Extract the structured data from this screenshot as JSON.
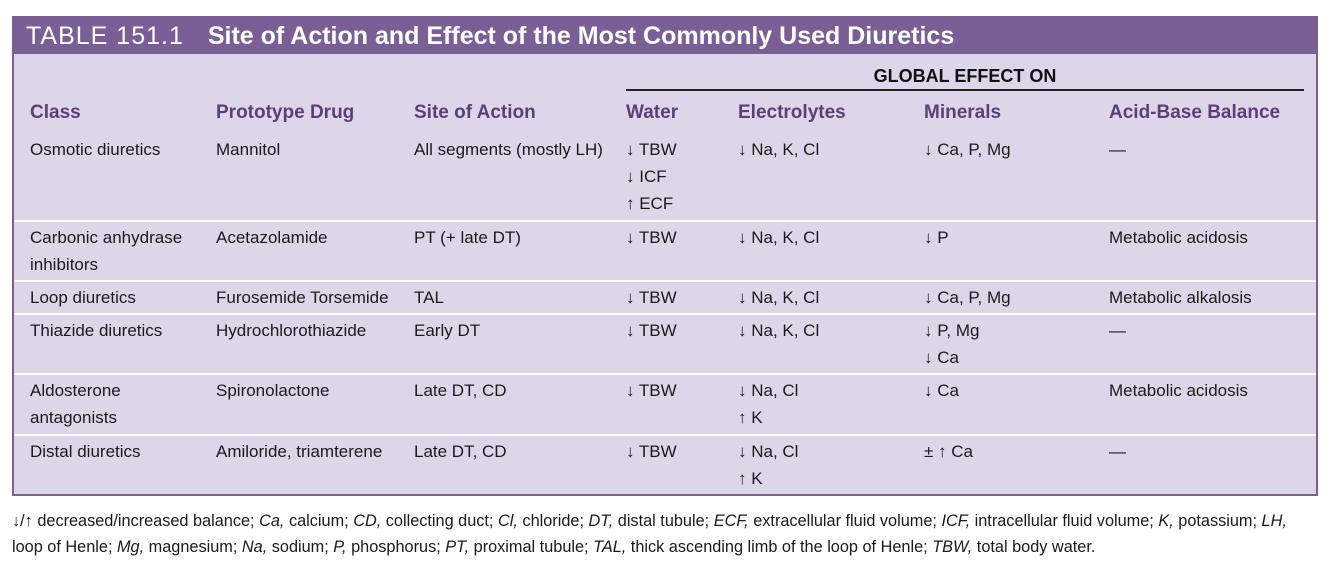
{
  "title": {
    "label": "TABLE 151.1",
    "caption": "Site of Action and Effect of the Most Commonly Used Diuretics"
  },
  "global_header": "GLOBAL EFFECT ON",
  "columns": [
    "Class",
    "Prototype Drug",
    "Site of Action",
    "Water",
    "Electrolytes",
    "Minerals",
    "Acid-Base Balance"
  ],
  "rows": [
    {
      "class": [
        "Osmotic diuretics"
      ],
      "drug": [
        "Mannitol"
      ],
      "site": [
        "All segments (mostly LH)"
      ],
      "water": [
        "↓ TBW",
        "↓ ICF",
        "↑ ECF"
      ],
      "electrolytes": [
        "↓ Na, K, Cl"
      ],
      "minerals": [
        "↓ Ca, P, Mg"
      ],
      "acid_base": [
        "—"
      ]
    },
    {
      "class": [
        "Carbonic anhydrase",
        "  inhibitors"
      ],
      "drug": [
        "Acetazolamide"
      ],
      "site": [
        "PT (+ late DT)"
      ],
      "water": [
        "↓ TBW"
      ],
      "electrolytes": [
        "↓ Na, K, Cl"
      ],
      "minerals": [
        "↓ P"
      ],
      "acid_base": [
        "Metabolic acidosis"
      ]
    },
    {
      "class": [
        "Loop diuretics"
      ],
      "drug": [
        "Furosemide Torsemide"
      ],
      "site": [
        "TAL"
      ],
      "water": [
        "↓ TBW"
      ],
      "electrolytes": [
        "↓ Na, K, Cl"
      ],
      "minerals": [
        "↓ Ca, P, Mg"
      ],
      "acid_base": [
        "Metabolic alkalosis"
      ]
    },
    {
      "class": [
        "Thiazide diuretics"
      ],
      "drug": [
        "Hydrochlorothiazide"
      ],
      "site": [
        "Early DT"
      ],
      "water": [
        "↓ TBW"
      ],
      "electrolytes": [
        "↓ Na, K, Cl"
      ],
      "minerals": [
        "↓ P, Mg",
        "↓ Ca"
      ],
      "acid_base": [
        "—"
      ]
    },
    {
      "class": [
        "Aldosterone",
        "  antagonists"
      ],
      "drug": [
        "Spironolactone"
      ],
      "site": [
        "Late DT, CD"
      ],
      "water": [
        "↓ TBW"
      ],
      "electrolytes": [
        "↓ Na, Cl",
        "↑ K"
      ],
      "minerals": [
        "↓ Ca"
      ],
      "acid_base": [
        "Metabolic acidosis"
      ]
    },
    {
      "class": [
        "Distal diuretics"
      ],
      "drug": [
        "Amiloride, triamterene"
      ],
      "site": [
        "Late DT, CD"
      ],
      "water": [
        "↓ TBW"
      ],
      "electrolytes": [
        "↓ Na, Cl",
        "↑ K"
      ],
      "minerals": [
        "± ↑ Ca"
      ],
      "acid_base": [
        "—"
      ]
    }
  ],
  "footnote": [
    {
      "t": "↓/↑ decreased/increased balance; "
    },
    {
      "i": "Ca,"
    },
    {
      "t": " calcium; "
    },
    {
      "i": "CD,"
    },
    {
      "t": " collecting duct; "
    },
    {
      "i": "Cl,"
    },
    {
      "t": " chloride; "
    },
    {
      "i": "DT,"
    },
    {
      "t": " distal tubule; "
    },
    {
      "i": "ECF,"
    },
    {
      "t": " extracellular fluid volume; "
    },
    {
      "i": "ICF,"
    },
    {
      "t": " intracellular fluid volume; "
    },
    {
      "i": "K,"
    },
    {
      "t": " potassium; "
    },
    {
      "i": "LH,"
    },
    {
      "t": " loop of Henle; "
    },
    {
      "i": "Mg,"
    },
    {
      "t": " magnesium; "
    },
    {
      "i": "Na,"
    },
    {
      "t": " sodium; "
    },
    {
      "i": "P,"
    },
    {
      "t": " phosphorus; "
    },
    {
      "i": "PT,"
    },
    {
      "t": " proximal tubule; "
    },
    {
      "i": "TAL,"
    },
    {
      "t": " thick ascending limb of the loop of Henle; "
    },
    {
      "i": "TBW,"
    },
    {
      "t": " total body water."
    }
  ],
  "colors": {
    "header_bar": "#7a5f96",
    "table_bg": "#ddd6e8",
    "heading_text": "#5b3f7a"
  }
}
